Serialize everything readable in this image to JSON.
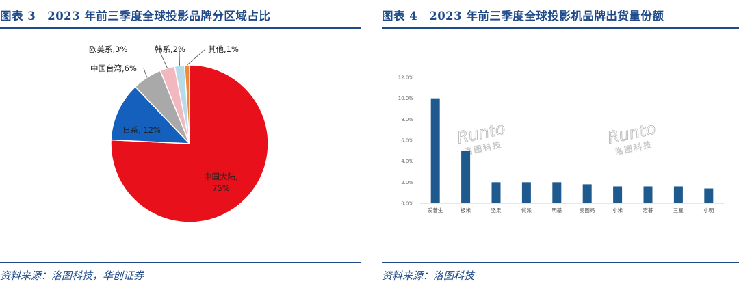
{
  "left": {
    "title": "图表 3　2023 年前三季度全球投影品牌分区域占比",
    "source": "资料来源：洛图科技，华创证券"
  },
  "right": {
    "title": "图表 4　2023 年前三季度全球投影机品牌出货量份额",
    "source": "资料来源：洛图科技"
  },
  "watermark": {
    "brand": "Runto",
    "cn": "洛图科技"
  },
  "chart_data": [
    {
      "type": "pie",
      "title": "2023 年前三季度全球投影品牌分区域占比",
      "slices": [
        {
          "label": "中国大陆",
          "value": 75,
          "display": "75%",
          "color": "#e8101a"
        },
        {
          "label": "日系",
          "value": 12,
          "display": "12%",
          "color": "#1560bd"
        },
        {
          "label": "中国台湾",
          "value": 6,
          "display": "6%",
          "color": "#a9a9a9"
        },
        {
          "label": "欧美系",
          "value": 3,
          "display": "3%",
          "color": "#f2b8c0"
        },
        {
          "label": "韩系",
          "value": 2,
          "display": "2%",
          "color": "#b7dbe8"
        },
        {
          "label": "其他",
          "value": 1,
          "display": "1%",
          "color": "#f08a3c"
        }
      ]
    },
    {
      "type": "bar",
      "title": "2023 年前三季度全球投影机品牌出货量份额",
      "categories": [
        "爱普生",
        "极米",
        "坚果",
        "优派",
        "明基",
        "奥图码",
        "小米",
        "宏碁",
        "三星",
        "小明"
      ],
      "values": [
        10.0,
        5.0,
        2.0,
        2.0,
        2.0,
        1.8,
        1.6,
        1.6,
        1.6,
        1.4
      ],
      "yticks": [
        "0.0%",
        "2.0%",
        "4.0%",
        "6.0%",
        "8.0%",
        "10.0%",
        "12.0%"
      ],
      "ylim": [
        0,
        12
      ],
      "color": "#1f5a8e"
    }
  ]
}
